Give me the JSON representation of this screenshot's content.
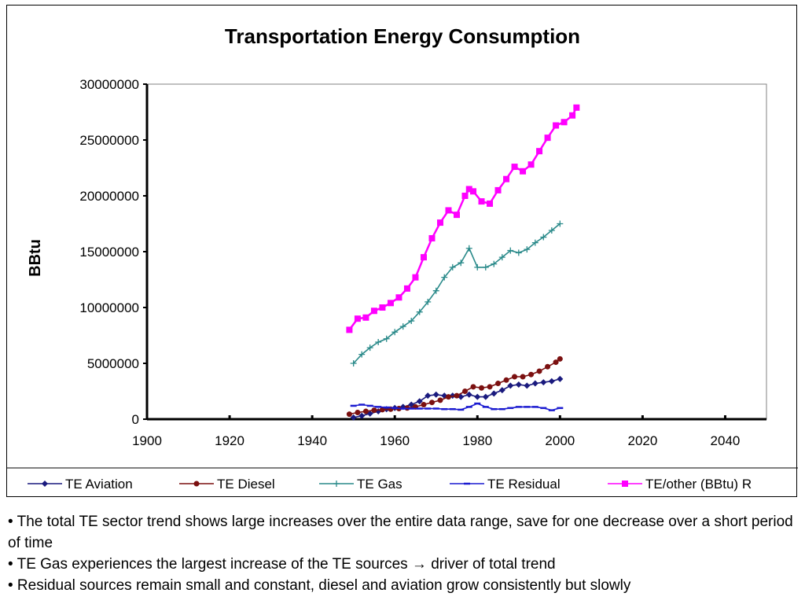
{
  "chart_data": {
    "type": "line",
    "title": "Transportation Energy Consumption",
    "xlabel": "",
    "ylabel": "BBtu",
    "xlim": [
      1900,
      2050
    ],
    "ylim": [
      0,
      30000000
    ],
    "x_ticks": [
      "1900",
      "1920",
      "1940",
      "1960",
      "1980",
      "2000",
      "2040"
    ],
    "x_ticks_full": [
      "1900",
      "1920",
      "1940",
      "1960",
      "1980",
      "2000",
      "2020",
      "2040"
    ],
    "y_ticks": [
      "0",
      "5000000",
      "10000000",
      "15000000",
      "20000000",
      "25000000",
      "30000000"
    ],
    "grid": false,
    "legend_position": "bottom",
    "series": [
      {
        "name": "TE Aviation",
        "color": "#1a1a7e",
        "marker": "diamond",
        "x": [
          1950,
          1952,
          1954,
          1956,
          1958,
          1960,
          1962,
          1964,
          1966,
          1968,
          1970,
          1972,
          1974,
          1976,
          1978,
          1980,
          1982,
          1984,
          1986,
          1988,
          1990,
          1992,
          1994,
          1996,
          1998,
          2000
        ],
        "y": [
          150000,
          300000,
          500000,
          700000,
          900000,
          1000000,
          1100000,
          1300000,
          1600000,
          2100000,
          2200000,
          2100000,
          2100000,
          2000000,
          2200000,
          2000000,
          2000000,
          2300000,
          2600000,
          3000000,
          3100000,
          3000000,
          3200000,
          3300000,
          3400000,
          3600000
        ]
      },
      {
        "name": "TE Diesel",
        "color": "#7b1010",
        "marker": "circle",
        "x": [
          1949,
          1951,
          1953,
          1955,
          1957,
          1959,
          1961,
          1963,
          1965,
          1967,
          1969,
          1971,
          1973,
          1975,
          1977,
          1979,
          1981,
          1983,
          1985,
          1987,
          1989,
          1991,
          1993,
          1995,
          1997,
          1999,
          2000
        ],
        "y": [
          450000,
          600000,
          700000,
          800000,
          850000,
          900000,
          950000,
          1000000,
          1100000,
          1300000,
          1500000,
          1700000,
          2000000,
          2100000,
          2500000,
          2900000,
          2800000,
          2900000,
          3200000,
          3500000,
          3800000,
          3800000,
          4000000,
          4300000,
          4700000,
          5100000,
          5400000
        ]
      },
      {
        "name": "TE Gas",
        "color": "#2a8a8a",
        "marker": "plus",
        "x": [
          1950,
          1952,
          1954,
          1956,
          1958,
          1960,
          1962,
          1964,
          1966,
          1968,
          1970,
          1972,
          1974,
          1976,
          1978,
          1980,
          1982,
          1984,
          1986,
          1988,
          1990,
          1992,
          1994,
          1996,
          1998,
          2000
        ],
        "y": [
          5000000,
          5800000,
          6400000,
          6900000,
          7200000,
          7800000,
          8300000,
          8800000,
          9600000,
          10500000,
          11500000,
          12700000,
          13600000,
          14000000,
          15300000,
          13600000,
          13600000,
          13900000,
          14500000,
          15100000,
          14900000,
          15200000,
          15800000,
          16300000,
          16900000,
          17500000
        ]
      },
      {
        "name": "TE Residual",
        "color": "#1a1ad0",
        "marker": "dash",
        "x": [
          1950,
          1952,
          1954,
          1956,
          1958,
          1960,
          1962,
          1964,
          1966,
          1968,
          1970,
          1972,
          1974,
          1976,
          1978,
          1980,
          1982,
          1984,
          1986,
          1988,
          1990,
          1992,
          1994,
          1996,
          1998,
          2000
        ],
        "y": [
          1200000,
          1300000,
          1200000,
          1100000,
          1050000,
          1000000,
          950000,
          950000,
          950000,
          950000,
          950000,
          900000,
          900000,
          850000,
          1100000,
          1400000,
          1100000,
          900000,
          900000,
          1000000,
          1100000,
          1100000,
          1100000,
          1000000,
          800000,
          1000000
        ]
      },
      {
        "name": "TE/other (BBtu) R",
        "color": "#ff00ff",
        "marker": "square",
        "x": [
          1949,
          1951,
          1953,
          1955,
          1957,
          1959,
          1961,
          1963,
          1965,
          1967,
          1969,
          1971,
          1973,
          1975,
          1977,
          1978,
          1979,
          1981,
          1983,
          1985,
          1987,
          1989,
          1991,
          1993,
          1995,
          1997,
          1999,
          2001,
          2003,
          2004
        ],
        "y": [
          8000000,
          9000000,
          9100000,
          9700000,
          10000000,
          10400000,
          10900000,
          11700000,
          12700000,
          14500000,
          16200000,
          17600000,
          18700000,
          18300000,
          20000000,
          20600000,
          20400000,
          19500000,
          19300000,
          20500000,
          21500000,
          22600000,
          22200000,
          22800000,
          24000000,
          25200000,
          26300000,
          26600000,
          27200000,
          27900000
        ]
      }
    ]
  },
  "notes": [
    "• The total TE sector trend shows large increases over the entire data range, save for one decrease over a short period of time",
    "• TE Gas experiences the largest increase of the TE sources → driver of total trend",
    "• Residual sources remain small and constant, diesel and aviation grow consistently but slowly"
  ]
}
